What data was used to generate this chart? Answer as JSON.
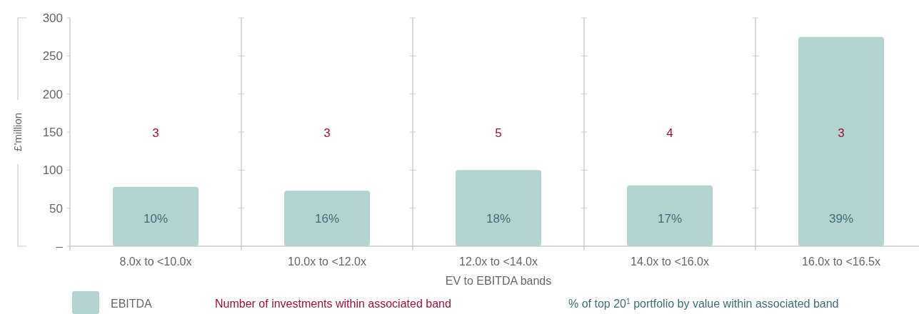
{
  "chart_data": {
    "type": "bar",
    "xlabel": "EV to EBITDA bands",
    "ylabel": "£’million",
    "categories": [
      "8.0x to <10.0x",
      "10.0x to <12.0x",
      "12.0x to <14.0x",
      "14.0x to <16.0x",
      "16.0x to <16.5x"
    ],
    "series": [
      {
        "name": "EBITDA",
        "color": "#b2d3d0",
        "values": [
          78,
          73,
          100,
          80,
          275
        ]
      }
    ],
    "ylim": [
      0,
      300
    ],
    "yticks": [
      {
        "value": 0,
        "label": "–"
      },
      50,
      100,
      150,
      200,
      250,
      300
    ],
    "annotations": [
      "3",
      "3",
      "5",
      "4",
      "3",
      "10%",
      "16%",
      "18%",
      "17%",
      "39%",
      "Number of investments within associated band",
      "% of top 20$^{1}$ portfolio by value within associated band"
    ],
    "legend": "bottom"
  }
}
